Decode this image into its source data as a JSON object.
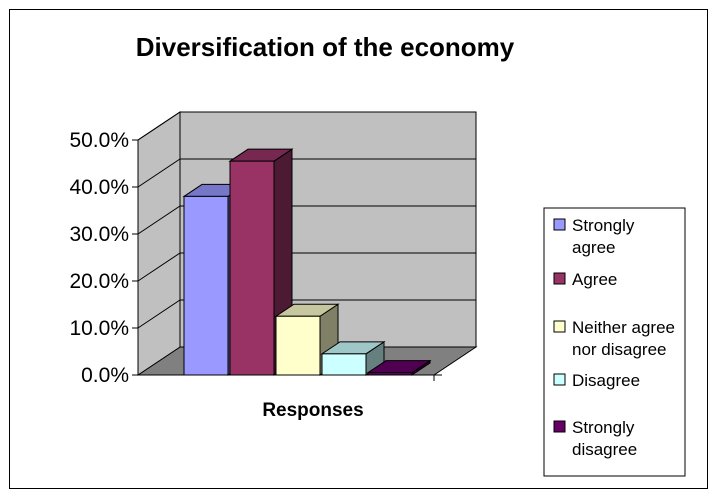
{
  "chart_data": {
    "type": "bar",
    "title": "Diversification of the economy",
    "xlabel": "Responses",
    "ylabel": "",
    "categories": [
      "Responses"
    ],
    "series": [
      {
        "name": "Strongly agree",
        "name_lines": [
          "Strongly",
          "agree"
        ],
        "values": [
          38.0
        ],
        "color": "#9999ff"
      },
      {
        "name": "Agree",
        "name_lines": [
          "Agree"
        ],
        "values": [
          45.5
        ],
        "color": "#993366"
      },
      {
        "name": "Neither agree nor disagree",
        "name_lines": [
          "Neither agree",
          "nor disagree"
        ],
        "values": [
          12.5
        ],
        "color": "#ffffcc"
      },
      {
        "name": "Disagree",
        "name_lines": [
          "Disagree"
        ],
        "values": [
          4.5
        ],
        "color": "#ccffff"
      },
      {
        "name": "Strongly disagree",
        "name_lines": [
          "Strongly",
          "disagree"
        ],
        "values": [
          0.5
        ],
        "color": "#660066"
      }
    ],
    "ylim": [
      0,
      50
    ],
    "yticks": [
      "0.0%",
      "10.0%",
      "20.0%",
      "30.0%",
      "40.0%",
      "50.0%"
    ],
    "grid": true,
    "legend": "right"
  },
  "colors": {
    "wall": "#c0c0c0",
    "floor": "#808080"
  }
}
